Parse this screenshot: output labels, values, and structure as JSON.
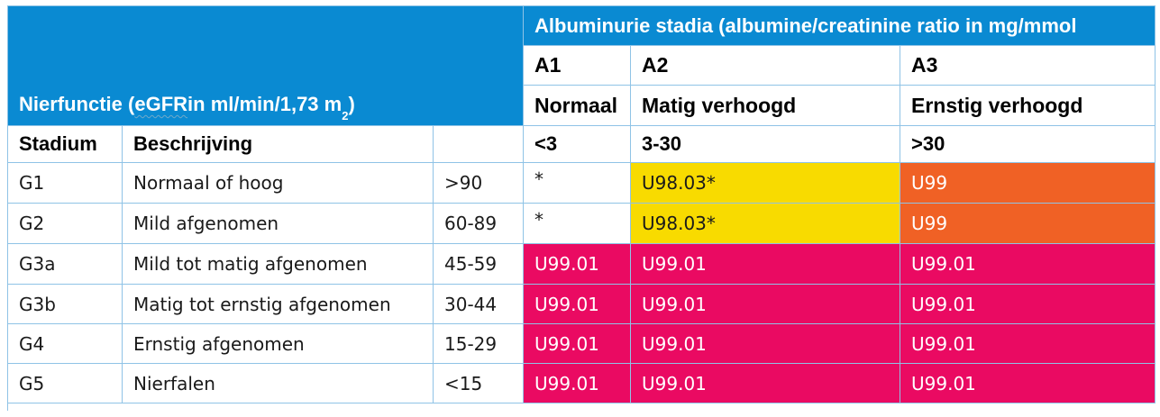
{
  "header": {
    "kidney_function_title": "Nierfunctie (",
    "kidney_function_egfr": "eGFR",
    "kidney_function_unit": " in ml/min/1,73 m",
    "kidney_function_sup": "2",
    "kidney_function_close": ")",
    "albuminuria_title": "Albuminurie stadia (albumine/creatinine ratio in mg/mmol",
    "albuminuria_stages": [
      {
        "code": "A1",
        "label": "Normaal",
        "range": "<3"
      },
      {
        "code": "A2",
        "label": "Matig verhoogd",
        "range": "3-30"
      },
      {
        "code": "A3",
        "label": "Ernstig  verhoogd",
        "range": ">30"
      }
    ],
    "col_stage": "Stadium",
    "col_description": "Beschrijving"
  },
  "rows": [
    {
      "stage": "G1",
      "description": "Normaal of hoog",
      "egfr": ">90",
      "a1": "*",
      "a2": "U98.03*",
      "a3": "U99"
    },
    {
      "stage": "G2",
      "description": "Mild afgenomen",
      "egfr": "60-89",
      "a1": "*",
      "a2": "U98.03*",
      "a3": "U99"
    },
    {
      "stage": "G3a",
      "description": "Mild tot matig afgenomen",
      "egfr": "45-59",
      "a1": "U99.01",
      "a2": "U99.01",
      "a3": "U99.01"
    },
    {
      "stage": "G3b",
      "description": "Matig tot ernstig afgenomen",
      "egfr": "30-44",
      "a1": "U99.01",
      "a2": "U99.01",
      "a3": "U99.01"
    },
    {
      "stage": "G4",
      "description": "Ernstig afgenomen",
      "egfr": "15-29",
      "a1": "U99.01",
      "a2": "U99.01",
      "a3": "U99.01"
    },
    {
      "stage": "G5",
      "description": "Nierfalen",
      "egfr": "<15",
      "a1": "U99.01",
      "a2": "U99.01",
      "a3": "U99.01"
    }
  ],
  "colors": {
    "header_blue": "#0a8ad2",
    "yellow": "#f8db00",
    "orange": "#f06125",
    "pink": "#ea0a62",
    "border": "#8fc3e6"
  }
}
